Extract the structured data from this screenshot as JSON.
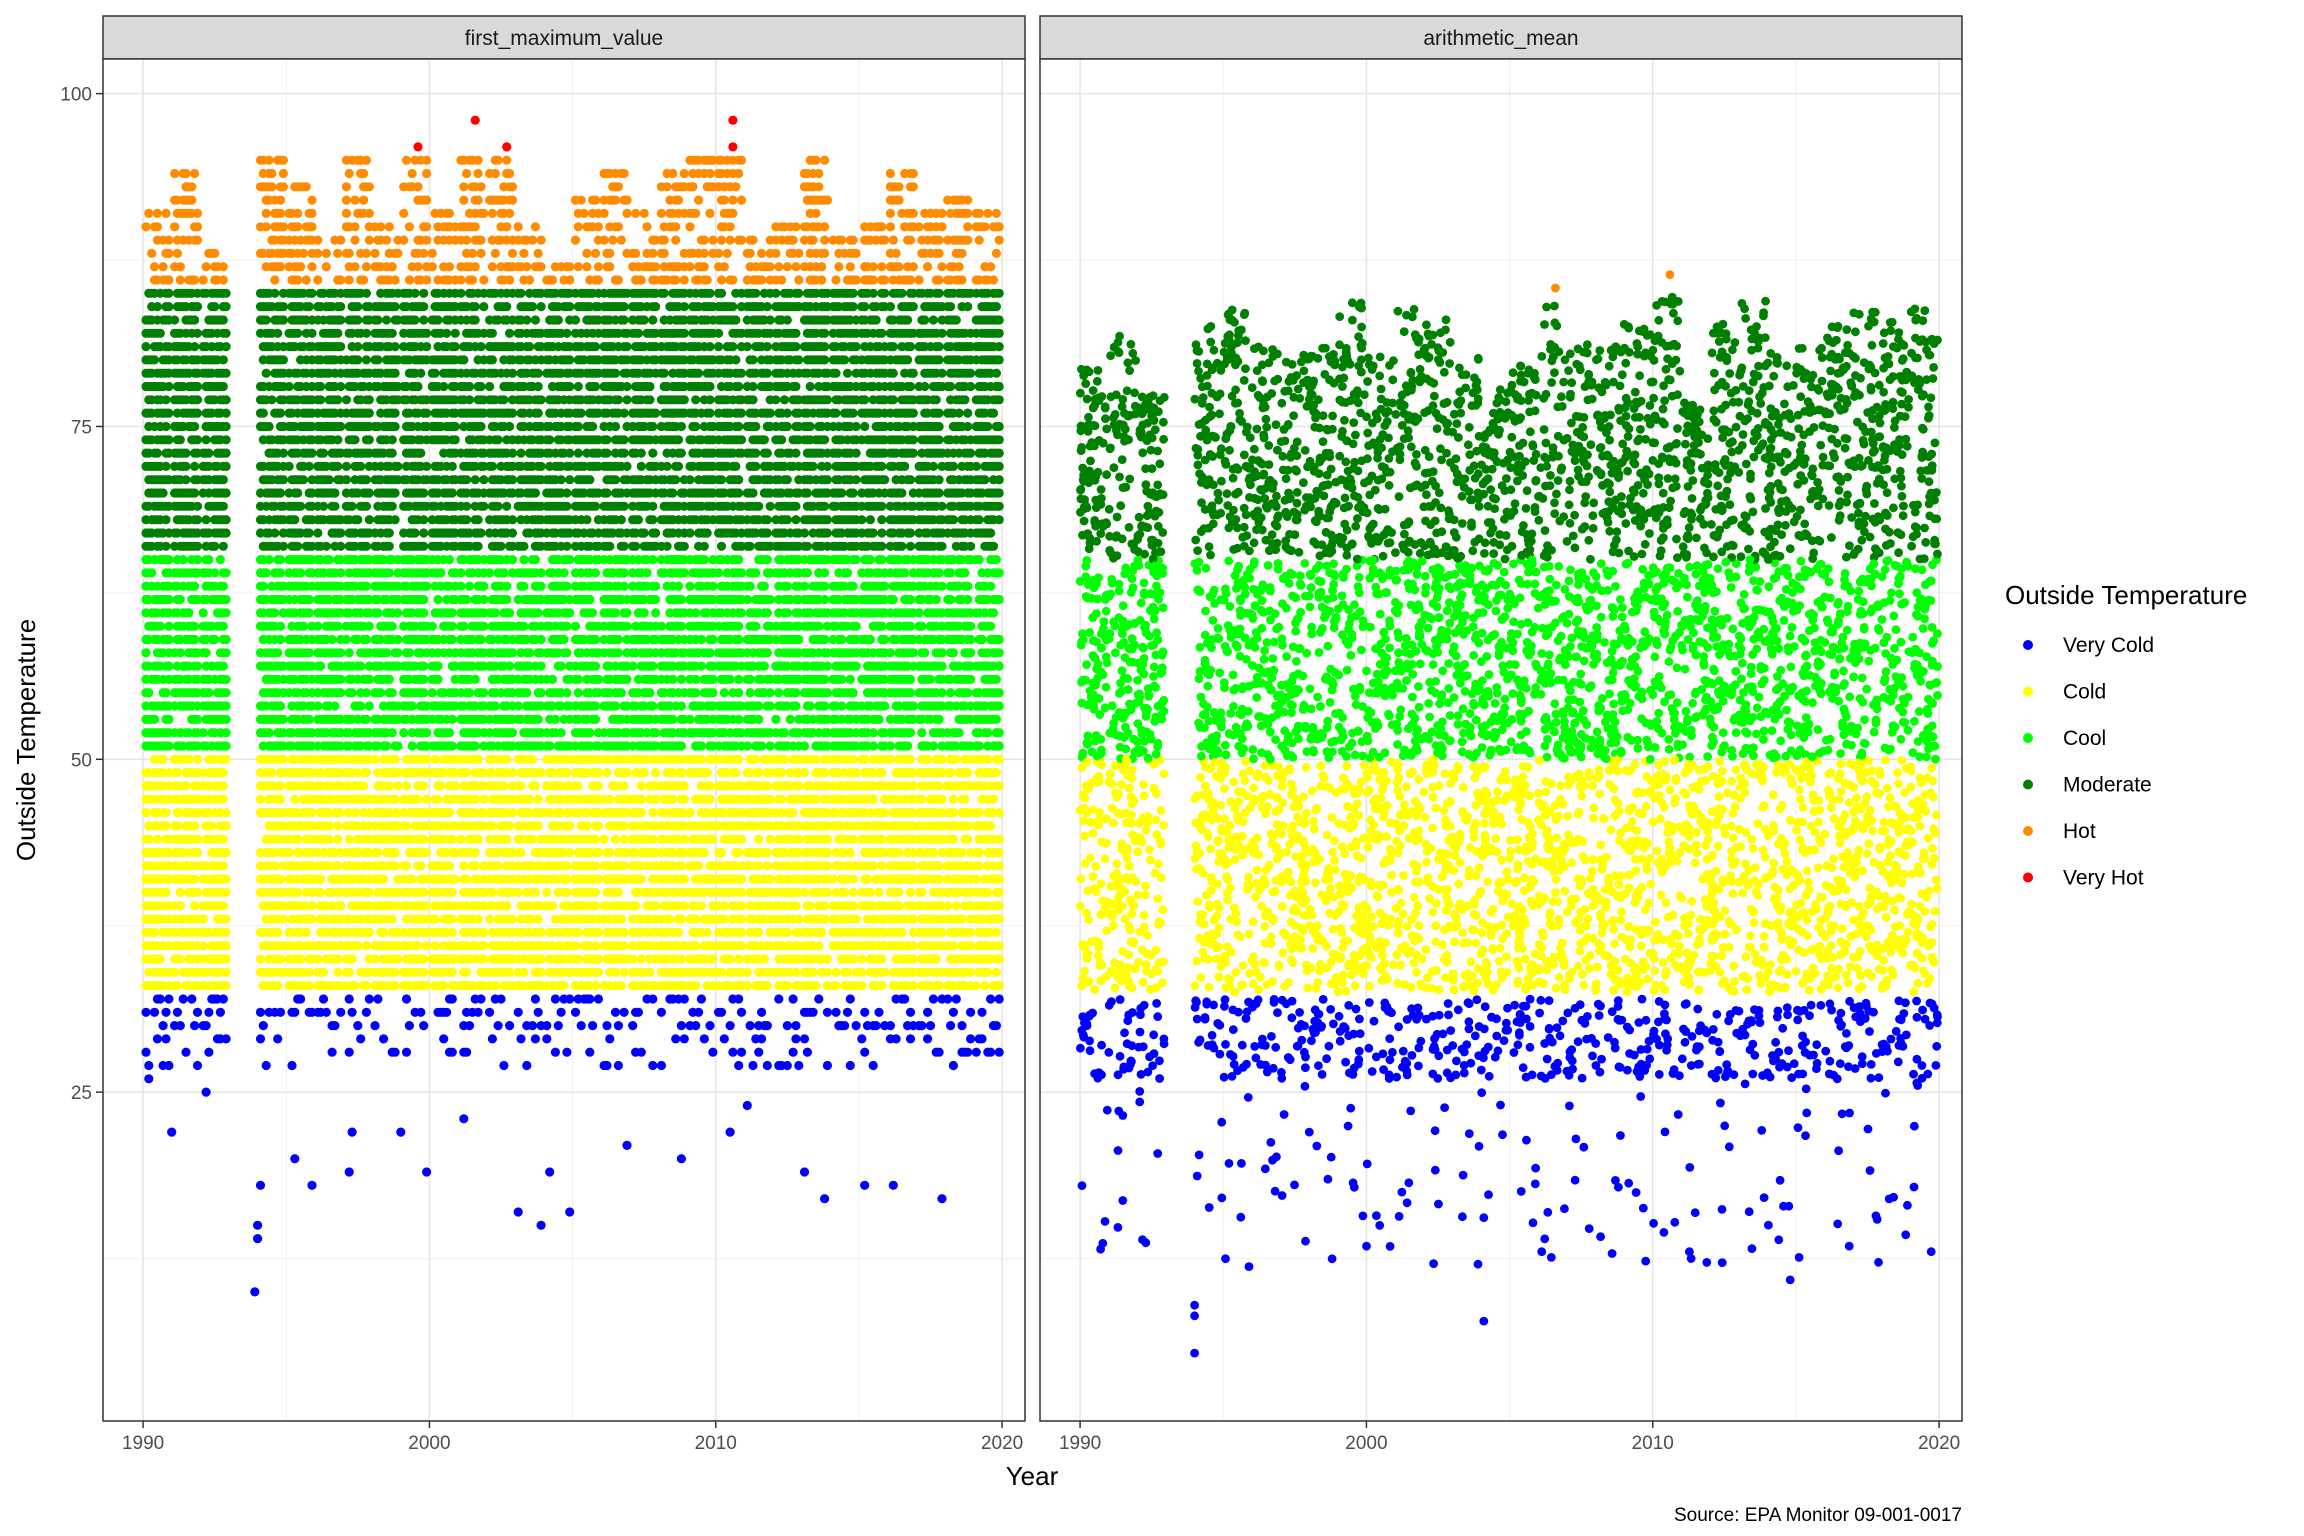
{
  "chart_data": {
    "type": "scatter",
    "xlabel": "Year",
    "ylabel": "Outside Temperature",
    "caption": "Source: EPA Monitor 09-001-0017",
    "xlim": [
      1988.6,
      2020.8
    ],
    "ylim": [
      0.3,
      102.6
    ],
    "x_ticks": [
      1990,
      2000,
      2010,
      2020
    ],
    "y_ticks": [
      25,
      50,
      75,
      100
    ],
    "grid": true,
    "legend": {
      "title": "Outside Temperature",
      "placement": "right",
      "entries": [
        {
          "label": "Very Cold",
          "color": "#0000ff"
        },
        {
          "label": "Cold",
          "color": "#ffff00"
        },
        {
          "label": "Cool",
          "color": "#00ff00"
        },
        {
          "label": "Moderate",
          "color": "#008000"
        },
        {
          "label": "Hot",
          "color": "#ff8c00"
        },
        {
          "label": "Very Hot",
          "color": "#ff0000"
        }
      ]
    },
    "categories": [
      {
        "name": "Very Cold",
        "range": [
          null,
          32
        ]
      },
      {
        "name": "Cold",
        "range": [
          33,
          50
        ]
      },
      {
        "name": "Cool",
        "range": [
          51,
          65
        ]
      },
      {
        "name": "Moderate",
        "range": [
          66,
          85
        ]
      },
      {
        "name": "Hot",
        "range": [
          86,
          95
        ]
      },
      {
        "name": "Very Hot",
        "range": [
          96,
          null
        ]
      }
    ],
    "years_with_data": [
      1990,
      1991,
      1992,
      1994,
      1995,
      1996,
      1997,
      1998,
      1999,
      2000,
      2001,
      2002,
      2003,
      2004,
      2005,
      2006,
      2007,
      2008,
      2009,
      2010,
      2011,
      2012,
      2013,
      2014,
      2015,
      2016,
      2017,
      2018,
      2019
    ],
    "panels": [
      {
        "title": "first_maximum_value",
        "value_type": "integer",
        "yearly_max": {
          "1990": 91,
          "1991": 94,
          "1992": 88,
          "1994": 95,
          "1995": 93,
          "1996": 89,
          "1997": 95,
          "1998": 90,
          "1999": 96,
          "2000": 91,
          "2001": 98,
          "2002": 96,
          "2003": 91,
          "2004": 87,
          "2005": 93,
          "2006": 94,
          "2007": 91,
          "2008": 94,
          "2009": 95,
          "2010": 98,
          "2011": 89,
          "2012": 90,
          "2013": 95,
          "2014": 89,
          "2015": 90,
          "2016": 94,
          "2017": 91,
          "2018": 92,
          "2019": 91
        },
        "very_hot_points": [
          [
            1999.6,
            96
          ],
          [
            2001.6,
            98
          ],
          [
            2002.7,
            96
          ],
          [
            2010.6,
            98
          ],
          [
            2010.6,
            96
          ]
        ],
        "very_cold_points": [
          [
            1990.2,
            26
          ],
          [
            1991.0,
            22
          ],
          [
            1992.2,
            25
          ],
          [
            1993.9,
            10
          ],
          [
            1994.0,
            14
          ],
          [
            1994.0,
            15
          ],
          [
            1994.1,
            18
          ],
          [
            1995.3,
            20
          ],
          [
            1995.9,
            18
          ],
          [
            1997.2,
            19
          ],
          [
            1997.3,
            22
          ],
          [
            1999.0,
            22
          ],
          [
            1999.9,
            19
          ],
          [
            2001.2,
            23
          ],
          [
            2003.1,
            16
          ],
          [
            2003.9,
            15
          ],
          [
            2004.2,
            19
          ],
          [
            2004.9,
            16
          ],
          [
            2006.9,
            21
          ],
          [
            2008.8,
            20
          ],
          [
            2010.5,
            22
          ],
          [
            2011.1,
            24
          ],
          [
            2013.1,
            19
          ],
          [
            2013.8,
            17
          ],
          [
            2015.2,
            18
          ],
          [
            2016.2,
            18
          ],
          [
            2017.9,
            17
          ],
          [
            2019.1,
            28
          ]
        ]
      },
      {
        "title": "arithmetic_mean",
        "value_type": "continuous",
        "yearly_max": {
          "1990": 79.3,
          "1991": 82.3,
          "1992": 77.4,
          "1994": 82.6,
          "1995": 83.8,
          "1996": 81.1,
          "1997": 81,
          "1998": 80.9,
          "1999": 84.4,
          "2000": 80.4,
          "2001": 83.9,
          "2002": 83.3,
          "2003": 80.3,
          "2004": 78,
          "2005": 79.6,
          "2006": 85.4,
          "2007": 81.3,
          "2008": 81.2,
          "2009": 82.7,
          "2010": 86.4,
          "2011": 76.8,
          "2012": 82.7,
          "2013": 84.5,
          "2014": 80.5,
          "2015": 81.4,
          "2016": 82.7,
          "2017": 83.6,
          "2018": 82.9,
          "2019": 84
        }
      }
    ]
  }
}
